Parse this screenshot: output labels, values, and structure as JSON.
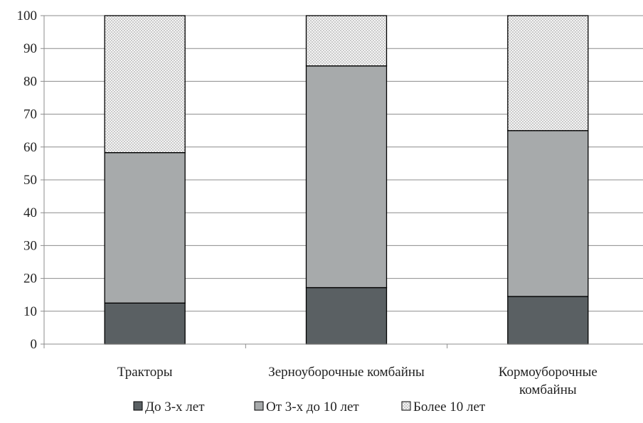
{
  "chart_data": {
    "type": "bar",
    "stacked": true,
    "categories": [
      [
        "Тракторы"
      ],
      [
        "Зерноуборочные комбайны"
      ],
      [
        "Кормоуборочные",
        "комбайны"
      ]
    ],
    "series": [
      {
        "name": "До 3-х лет",
        "values": [
          12.5,
          17.2,
          14.5
        ],
        "color": "#5a6063",
        "pattern": "solid"
      },
      {
        "name": "От 3-х до 10 лет",
        "values": [
          45.8,
          67.5,
          50.5
        ],
        "color": "#a7aaab",
        "pattern": "solid"
      },
      {
        "name": "Более 10 лет",
        "values": [
          41.7,
          15.3,
          35.0
        ],
        "color": "#e6e6e6",
        "pattern": "dotted"
      }
    ],
    "ylim": [
      0,
      100
    ],
    "yticks": [
      0,
      10,
      20,
      30,
      40,
      50,
      60,
      70,
      80,
      90,
      100
    ],
    "grid": true,
    "legend_position": "bottom"
  }
}
